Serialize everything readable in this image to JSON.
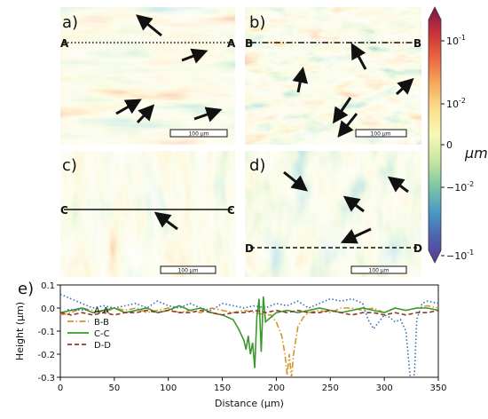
{
  "panels": [
    {
      "letter": "a)",
      "section": "A",
      "scalebar": "100 µm"
    },
    {
      "letter": "b)",
      "section": "B",
      "scalebar": "100 µm"
    },
    {
      "letter": "c)",
      "section": "C",
      "scalebar": "100 µm"
    },
    {
      "letter": "d)",
      "section": "D",
      "scalebar": "100 µm"
    }
  ],
  "colorbar": {
    "unit": "µm",
    "ticks": [
      "10",
      "10",
      "0",
      "−10",
      "−10"
    ],
    "exponents": [
      "-1",
      "-2",
      "",
      "-2",
      "-1"
    ],
    "colors": [
      "#7a1548",
      "#c8313a",
      "#e9673f",
      "#f7a95d",
      "#fbe08e",
      "#f6f7b8",
      "#c7e7a0",
      "#7ec7a5",
      "#4a9ac4",
      "#4c62b0",
      "#5b3b93"
    ]
  },
  "chart_data": {
    "type": "line",
    "panel_label": "e)",
    "xlabel": "Distance (µm)",
    "ylabel": "Height (µm)",
    "xlim": [
      0,
      350
    ],
    "ylim": [
      -0.3,
      0.1
    ],
    "xticks": [
      0,
      50,
      100,
      150,
      200,
      250,
      300,
      350
    ],
    "yticks": [
      0.1,
      0.0,
      -0.1,
      -0.2,
      -0.3
    ],
    "legend_position": "left",
    "series": [
      {
        "name": "A-A",
        "color": "#2f6db3",
        "dash": "1.5,2.5",
        "x": [
          0,
          10,
          20,
          30,
          40,
          50,
          60,
          70,
          80,
          90,
          100,
          110,
          120,
          130,
          140,
          150,
          160,
          170,
          180,
          190,
          200,
          210,
          220,
          230,
          240,
          250,
          260,
          270,
          280,
          285,
          290,
          295,
          300,
          305,
          310,
          315,
          320,
          322,
          324,
          326,
          328,
          330,
          335,
          340,
          350
        ],
        "y": [
          0.06,
          0.04,
          0.02,
          0.0,
          0.01,
          0.0,
          0.01,
          0.02,
          0.0,
          0.03,
          0.01,
          0.0,
          0.02,
          0.0,
          -0.01,
          0.02,
          0.01,
          0.0,
          0.01,
          0.0,
          0.02,
          0.01,
          0.03,
          0.0,
          0.02,
          0.04,
          0.03,
          0.04,
          0.02,
          -0.05,
          -0.09,
          -0.06,
          -0.03,
          -0.04,
          -0.06,
          -0.05,
          -0.1,
          -0.2,
          -0.3,
          -0.32,
          -0.28,
          -0.05,
          0.02,
          0.03,
          0.02
        ]
      },
      {
        "name": "B-B",
        "color": "#d3952a",
        "dash": "7,2.5,1.5,2.5",
        "x": [
          0,
          10,
          20,
          30,
          40,
          50,
          60,
          70,
          80,
          90,
          100,
          110,
          120,
          130,
          140,
          150,
          160,
          170,
          180,
          190,
          195,
          200,
          205,
          208,
          210,
          212,
          214,
          216,
          218,
          220,
          225,
          230,
          240,
          250,
          260,
          270,
          280,
          290,
          300,
          310,
          320,
          330,
          340,
          350
        ],
        "y": [
          -0.03,
          -0.02,
          0.0,
          -0.01,
          -0.02,
          0.0,
          -0.01,
          0.0,
          -0.02,
          -0.01,
          0.0,
          -0.02,
          -0.01,
          -0.02,
          0.0,
          -0.01,
          -0.02,
          -0.01,
          -0.02,
          -0.03,
          -0.03,
          -0.06,
          -0.12,
          -0.2,
          -0.29,
          -0.2,
          -0.3,
          -0.2,
          -0.14,
          -0.08,
          -0.04,
          -0.02,
          -0.01,
          -0.02,
          0.0,
          0.0,
          -0.01,
          0.0,
          -0.02,
          0.0,
          -0.01,
          0.0,
          0.01,
          0.0
        ]
      },
      {
        "name": "C-C",
        "color": "#3a9a2b",
        "dash": "",
        "x": [
          0,
          10,
          20,
          30,
          40,
          50,
          60,
          70,
          80,
          90,
          100,
          110,
          120,
          130,
          140,
          150,
          160,
          165,
          170,
          172,
          174,
          176,
          178,
          180,
          182,
          184,
          186,
          188,
          190,
          195,
          200,
          210,
          220,
          230,
          240,
          250,
          260,
          270,
          280,
          290,
          300,
          310,
          320,
          330,
          340,
          350
        ],
        "y": [
          -0.02,
          -0.01,
          0.0,
          -0.02,
          -0.01,
          0.0,
          -0.02,
          -0.01,
          0.0,
          -0.02,
          -0.01,
          0.01,
          -0.01,
          0.0,
          -0.02,
          -0.03,
          -0.05,
          -0.09,
          -0.14,
          -0.18,
          -0.12,
          -0.2,
          -0.15,
          -0.26,
          -0.04,
          0.04,
          -0.19,
          0.05,
          -0.06,
          -0.04,
          -0.02,
          -0.01,
          -0.02,
          -0.01,
          0.0,
          -0.01,
          -0.02,
          -0.01,
          0.0,
          -0.01,
          -0.02,
          0.0,
          -0.01,
          0.0,
          0.0,
          -0.01
        ]
      },
      {
        "name": "D-D",
        "color": "#8e3a30",
        "dash": "5,3",
        "x": [
          0,
          10,
          20,
          30,
          40,
          50,
          60,
          70,
          80,
          90,
          100,
          110,
          120,
          130,
          140,
          150,
          160,
          170,
          180,
          190,
          200,
          210,
          220,
          230,
          240,
          250,
          260,
          270,
          280,
          290,
          300,
          310,
          320,
          330,
          340,
          350
        ],
        "y": [
          -0.02,
          -0.03,
          -0.02,
          -0.03,
          -0.02,
          -0.03,
          -0.02,
          -0.02,
          -0.01,
          -0.02,
          -0.01,
          -0.02,
          -0.02,
          -0.01,
          -0.02,
          -0.03,
          -0.02,
          -0.02,
          -0.01,
          -0.02,
          -0.01,
          -0.02,
          -0.01,
          -0.02,
          -0.02,
          -0.01,
          -0.02,
          -0.03,
          -0.02,
          -0.02,
          -0.03,
          -0.02,
          -0.03,
          -0.02,
          -0.02,
          -0.01
        ]
      }
    ]
  }
}
